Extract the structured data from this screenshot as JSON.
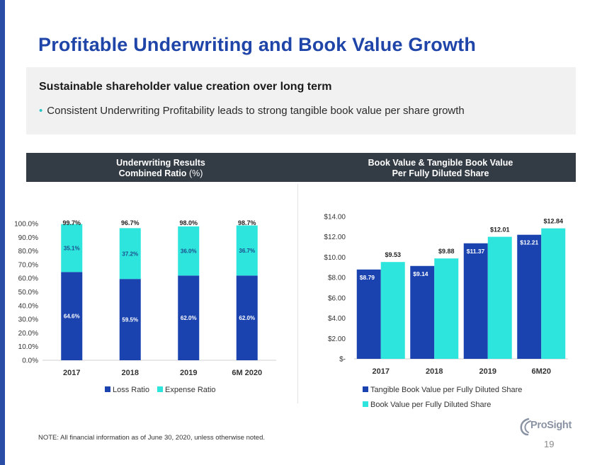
{
  "page": {
    "title": "Profitable Underwriting and Book Value Growth",
    "summary_heading": "Sustainable shareholder value creation over long term",
    "bullet": "Consistent Underwriting Profitability leads to strong tangible book value per share growth",
    "left_header_line1": "Underwriting Results",
    "left_header_line2": "Combined Ratio",
    "left_header_unit": "(%)",
    "right_header_line1": "Book Value & Tangible Book Value",
    "right_header_line2": "Per Fully Diluted Share",
    "note": "NOTE: All financial information as of June 30, 2020, unless otherwise noted.",
    "logo_text": "ProSight",
    "page_number": "19"
  },
  "colors": {
    "title_blue": "#1f45a8",
    "loss_blue": "#1a43b0",
    "expense_teal": "#2ee5dd",
    "header_band": "#333b45"
  },
  "chart_data": [
    {
      "type": "bar",
      "stacked": true,
      "title": "Underwriting Results Combined Ratio (%)",
      "categories": [
        "2017",
        "2018",
        "2019",
        "6M 2020"
      ],
      "series": [
        {
          "name": "Loss Ratio",
          "values": [
            64.6,
            59.5,
            62.0,
            62.0
          ],
          "labels": [
            "64.6%",
            "59.5%",
            "62.0%",
            "62.0%"
          ]
        },
        {
          "name": "Expense Ratio",
          "values": [
            35.1,
            37.2,
            36.0,
            36.7
          ],
          "labels": [
            "35.1%",
            "37.2%",
            "36.0%",
            "36.7%"
          ]
        }
      ],
      "totals": [
        99.7,
        96.7,
        98.0,
        98.7
      ],
      "total_labels": [
        "99.7%",
        "96.7%",
        "98.0%",
        "98.7%"
      ],
      "yticks": [
        "0.0%",
        "10.0%",
        "20.0%",
        "30.0%",
        "40.0%",
        "50.0%",
        "60.0%",
        "70.0%",
        "80.0%",
        "90.0%",
        "100.0%"
      ],
      "ylim": [
        0,
        100
      ],
      "legend": "bottom"
    },
    {
      "type": "bar",
      "stacked": false,
      "title": "Book Value & Tangible Book Value Per Fully Diluted Share",
      "categories": [
        "2017",
        "2018",
        "2019",
        "6M20"
      ],
      "series": [
        {
          "name": "Tangible Book Value per Fully Diluted Share",
          "values": [
            8.79,
            9.14,
            11.37,
            12.21
          ],
          "labels": [
            "$8.79",
            "$9.14",
            "$11.37",
            "$12.21"
          ]
        },
        {
          "name": "Book Value per Fully Diluted Share",
          "values": [
            9.53,
            9.88,
            12.01,
            12.84
          ],
          "labels": [
            "$9.53",
            "$9.88",
            "$12.01",
            "$12.84"
          ]
        }
      ],
      "yticks": [
        "$-",
        "$2.00",
        "$4.00",
        "$6.00",
        "$8.00",
        "$10.00",
        "$12.00",
        "$14.00"
      ],
      "ylim": [
        0,
        14
      ],
      "legend": "bottom"
    }
  ]
}
